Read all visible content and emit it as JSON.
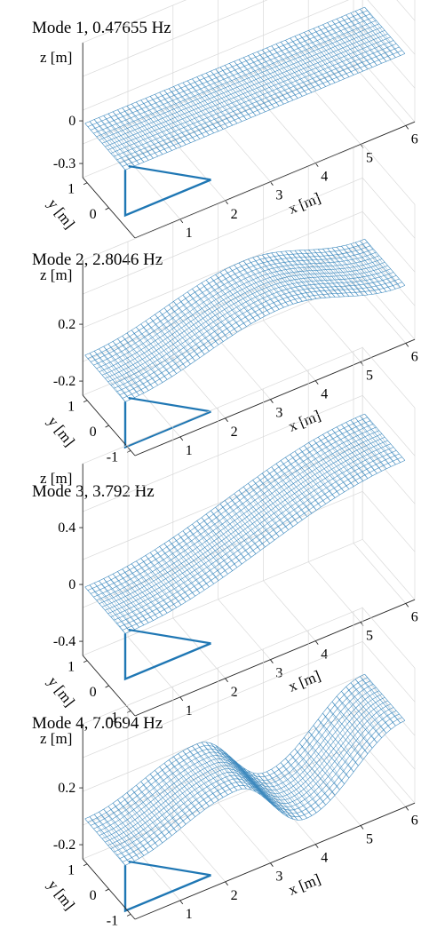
{
  "chart_data": [
    {
      "type": "surface",
      "title": "Mode 1, 0.47655 Hz",
      "frequency_hz": 0.47655,
      "xlabel": "x [m]",
      "ylabel": "y [m]",
      "zlabel": "z [m]",
      "xlim": [
        0,
        6.2
      ],
      "ylim": [
        -1.2,
        1.2
      ],
      "zlim": [
        -0.4,
        0.2
      ],
      "xticks": [
        "1",
        "2",
        "3",
        "4",
        "5",
        "6"
      ],
      "yticks": [
        "0",
        "1"
      ],
      "zticks": [
        "0",
        "-0.3"
      ],
      "grid": true,
      "color": "#1f77b4",
      "deck_edge_z": [
        [
          0,
          0.0
        ],
        [
          3,
          0.0
        ],
        [
          6.2,
          0.0
        ]
      ]
    },
    {
      "type": "surface",
      "title": "Mode 2, 2.8046 Hz",
      "frequency_hz": 2.8046,
      "xlabel": "x [m]",
      "ylabel": "y [m]",
      "zlabel": "z [m]",
      "xlim": [
        0,
        6.2
      ],
      "ylim": [
        -1.2,
        1.2
      ],
      "zlim": [
        -0.3,
        0.3
      ],
      "xticks": [
        "1",
        "2",
        "3",
        "4",
        "5",
        "6"
      ],
      "yticks": [
        "-1",
        "0",
        "1"
      ],
      "zticks": [
        "0.2",
        "-0.2"
      ],
      "grid": true,
      "color": "#1f77b4",
      "deck_edge_z": [
        [
          0,
          0.0
        ],
        [
          3.5,
          0.2
        ],
        [
          6.2,
          0.0
        ]
      ]
    },
    {
      "type": "surface",
      "title": "Mode 3, 3.792 Hz",
      "frequency_hz": 3.792,
      "xlabel": "x [m]",
      "ylabel": "y [m]",
      "zlabel": "z [m]",
      "xlim": [
        0,
        6.2
      ],
      "ylim": [
        -1.2,
        1.2
      ],
      "zlim": [
        -0.5,
        0.5
      ],
      "xticks": [
        "1",
        "2",
        "3",
        "4",
        "5",
        "6"
      ],
      "yticks": [
        "-1",
        "0",
        "1"
      ],
      "zticks": [
        "0.4",
        "0",
        "-0.4"
      ],
      "grid": true,
      "color": "#1f77b4",
      "deck_edge_z": [
        [
          0,
          0.0
        ],
        [
          6.2,
          0.4
        ]
      ]
    },
    {
      "type": "surface",
      "title": "Mode 4, 7.0694 Hz",
      "frequency_hz": 7.0694,
      "xlabel": "x [m]",
      "ylabel": "y [m]",
      "zlabel": "z [m]",
      "xlim": [
        0,
        6.2
      ],
      "ylim": [
        -1.2,
        1.2
      ],
      "zlim": [
        -0.3,
        0.3
      ],
      "xticks": [
        "1",
        "2",
        "3",
        "4",
        "5",
        "6"
      ],
      "yticks": [
        "-1",
        "0",
        "1"
      ],
      "zticks": [
        "0.2",
        "-0.2"
      ],
      "grid": true,
      "color": "#1f77b4",
      "deck_edge_z": [
        [
          0,
          0.0
        ],
        [
          2.5,
          0.2
        ],
        [
          4.0,
          -0.2
        ],
        [
          6.2,
          0.2
        ]
      ]
    }
  ]
}
